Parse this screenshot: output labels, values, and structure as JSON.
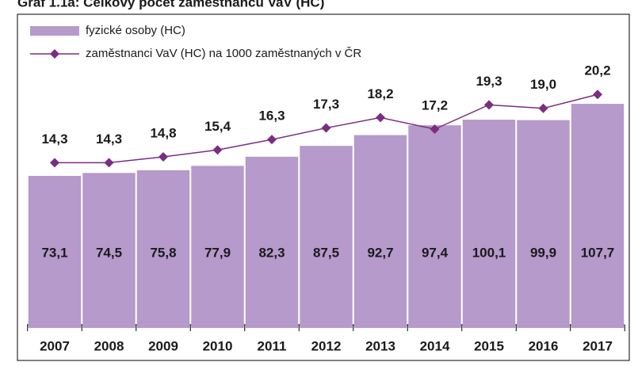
{
  "chart_data": {
    "type": "bar",
    "title": "Graf 1.1a: Celkový počet zaměstnanců VaV (HC)",
    "categories": [
      "2007",
      "2008",
      "2009",
      "2010",
      "2011",
      "2012",
      "2013",
      "2014",
      "2015",
      "2016",
      "2017"
    ],
    "series": [
      {
        "name": "fyzické osoby (HC)",
        "type": "bar",
        "color": "#b59acb",
        "values": [
          73.1,
          74.5,
          75.8,
          77.9,
          82.3,
          87.5,
          92.7,
          97.4,
          100.1,
          99.9,
          107.7
        ],
        "value_labels": [
          "73,1",
          "74,5",
          "75,8",
          "77,9",
          "82,3",
          "87,5",
          "92,7",
          "97,4",
          "100,1",
          "99,9",
          "107,7"
        ]
      },
      {
        "name": "zaměstnanci VaV (HC) na 1000 zaměstnaných v ČR",
        "type": "line",
        "axis": "y2",
        "color": "#7b2d82",
        "values": [
          14.3,
          14.3,
          14.8,
          15.4,
          16.3,
          17.3,
          18.2,
          17.2,
          19.3,
          19.0,
          20.2
        ],
        "value_labels": [
          "14,3",
          "14,3",
          "14,8",
          "15,4",
          "16,3",
          "17,3",
          "18,2",
          "17,2",
          "19,3",
          "19,0",
          "20,2"
        ]
      }
    ],
    "ylim": [
      0,
      150
    ],
    "y2lim": [
      0,
      27
    ],
    "grid": false,
    "legend": "top-left"
  }
}
